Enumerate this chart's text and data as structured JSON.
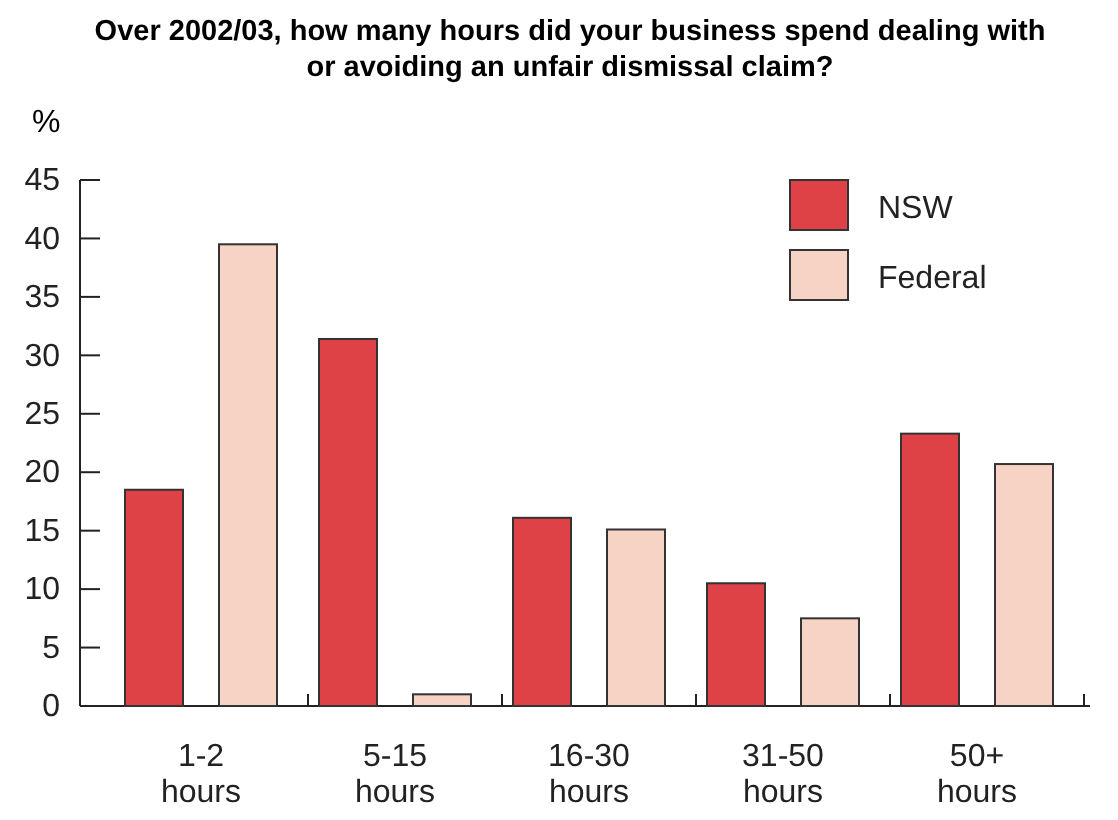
{
  "chart_data": {
    "type": "bar",
    "title": "Over 2002/03, how many hours did your business spend dealing with or avoiding an unfair dismissal claim?",
    "ylabel": "%",
    "categories": [
      "1-2 hours",
      "5-15 hours",
      "16-30 hours",
      "31-50 hours",
      "50+ hours"
    ],
    "series": [
      {
        "name": "NSW",
        "color": "#de4247",
        "values": [
          18.5,
          31.4,
          16.1,
          10.5,
          23.3
        ]
      },
      {
        "name": "Federal",
        "color": "#f7d3c6",
        "values": [
          39.5,
          1.0,
          15.1,
          7.5,
          20.7
        ]
      }
    ],
    "ylim": [
      0,
      45
    ],
    "yticks": [
      0,
      5,
      10,
      15,
      20,
      25,
      30,
      35,
      40,
      45
    ],
    "legend": "top right",
    "grid": false
  }
}
